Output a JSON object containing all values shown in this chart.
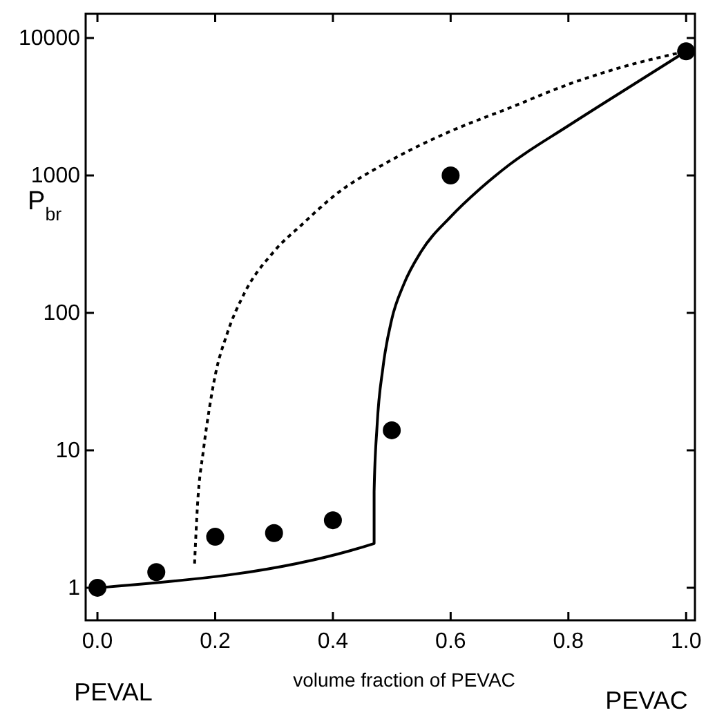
{
  "chart_data": {
    "type": "scatter",
    "xlabel": "volume fraction of PEVAC",
    "ylabel": "P$_{br}$",
    "log": "y",
    "grid": false,
    "xlim": [
      -0.02,
      1.015
    ],
    "ylim": [
      0.58,
      15000
    ],
    "xticks": [
      {
        "value": 0,
        "label": "0.0"
      },
      {
        "value": 0.2,
        "label": "0.2"
      },
      {
        "value": 0.4,
        "label": "0.4"
      },
      {
        "value": 0.6,
        "label": "0.6"
      },
      {
        "value": 0.8,
        "label": "0.8"
      },
      {
        "value": 1,
        "label": "1.0"
      }
    ],
    "yticks": [
      1,
      10,
      100,
      1000,
      10000
    ],
    "annotations": [
      "PEVAL",
      "PEVAC"
    ],
    "series": [
      {
        "marker": "circle",
        "color": "#000000",
        "x": [
          0,
          0.1,
          0.2,
          0.3,
          0.4,
          0.5,
          0.6,
          1.0
        ],
        "values": [
          1,
          1.3,
          2.35,
          2.5,
          3.1,
          14,
          1000,
          8000
        ]
      },
      {
        "type": "line",
        "marker": "none",
        "line_style": "solid",
        "color": "#000000",
        "x": [
          0,
          0.47,
          0.47,
          0.475,
          0.485,
          0.5,
          0.52,
          0.55,
          0.6,
          0.65,
          0.7,
          0.8,
          0.9,
          1.0
        ],
        "values": [
          1,
          2.1,
          5,
          15,
          40,
          90,
          160,
          280,
          500,
          800,
          1200,
          2300,
          4300,
          8000
        ]
      },
      {
        "type": "line",
        "marker": "none",
        "line_style": "dotted",
        "color": "#000000",
        "x": [
          0.165,
          0.17,
          0.18,
          0.19,
          0.2,
          0.22,
          0.25,
          0.3,
          0.35,
          0.4,
          0.5,
          0.6,
          0.7,
          0.8,
          0.9,
          1.0
        ],
        "values": [
          1.5,
          4,
          10,
          20,
          35,
          70,
          140,
          280,
          450,
          700,
          1300,
          2100,
          3100,
          4600,
          6300,
          8000
        ]
      }
    ]
  }
}
